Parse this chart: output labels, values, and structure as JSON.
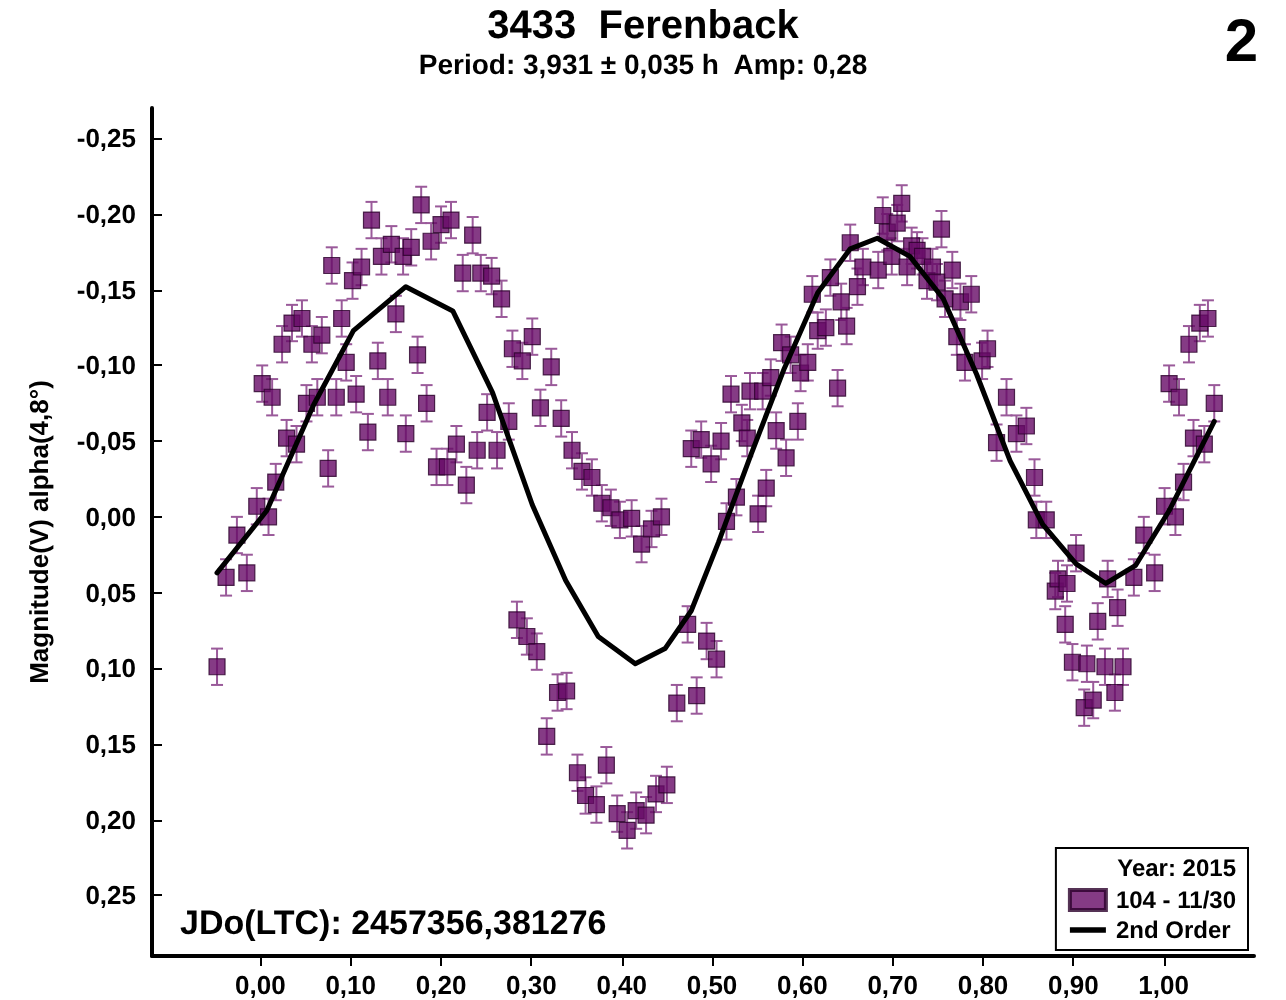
{
  "chart_data": {
    "type": "scatter",
    "title": "3433  Ferenback",
    "subtitle": "Period: 3,931 ± 0,035 h  Amp: 0,28",
    "ylabel": "Magnitude(V) alpha(4,8°)",
    "legend_title": "Year: 2015",
    "legend": "bottom right",
    "marker": "square",
    "grid": false,
    "annotations": [
      "2",
      "JDo(LTC): 2457356,381276"
    ],
    "xlim": [
      -0.12,
      1.1
    ],
    "ylim": [
      0.29,
      -0.27
    ],
    "xticks": [
      {
        "value": 0,
        "label": "0,00"
      },
      {
        "value": 0.1,
        "label": "0,10"
      },
      {
        "value": 0.2,
        "label": "0,20"
      },
      {
        "value": 0.3,
        "label": "0,30"
      },
      {
        "value": 0.4,
        "label": "0,40"
      },
      {
        "value": 0.5,
        "label": "0,50"
      },
      {
        "value": 0.6,
        "label": "0,60"
      },
      {
        "value": 0.7,
        "label": "0,70"
      },
      {
        "value": 0.8,
        "label": "0,80"
      },
      {
        "value": 0.9,
        "label": "0,90"
      },
      {
        "value": 1,
        "label": "1,00"
      }
    ],
    "yticks": [
      {
        "value": -0.25,
        "label": "-0,25"
      },
      {
        "value": -0.2,
        "label": "-0,20"
      },
      {
        "value": -0.15,
        "label": "-0,15"
      },
      {
        "value": -0.1,
        "label": "-0,10"
      },
      {
        "value": -0.05,
        "label": "-0,05"
      },
      {
        "value": 0,
        "label": "0,00"
      },
      {
        "value": 0.05,
        "label": "0,05"
      },
      {
        "value": 0.1,
        "label": "0,10"
      },
      {
        "value": 0.15,
        "label": "0,15"
      },
      {
        "value": 0.2,
        "label": "0,20"
      },
      {
        "value": 0.25,
        "label": "0,25"
      }
    ],
    "series": [
      {
        "name": "104 - 11/30",
        "color": "#660a66",
        "errors": [
          0.012,
          0.012,
          0.012,
          0.012,
          0.012,
          0.012,
          0.012,
          0.012,
          0.012,
          0.012,
          0.012,
          0.012,
          0.012,
          0.012,
          0.012,
          0.012,
          0.012,
          0.012,
          0.012,
          0.012,
          0.012,
          0.012,
          0.012,
          0.012,
          0.012,
          0.012,
          0.012,
          0.012,
          0.012,
          0.012,
          0.012,
          0.012,
          0.012,
          0.012,
          0.012,
          0.012,
          0.012,
          0.012,
          0.012,
          0.012,
          0.012,
          0.012,
          0.012,
          0.012,
          0.012,
          0.012,
          0.012,
          0.012,
          0.012,
          0.012,
          0.012,
          0.012,
          0.012,
          0.012,
          0.012,
          0.012,
          0.012,
          0.012,
          0.012,
          0.012,
          0.012,
          0.012,
          0.012,
          0.012,
          0.012,
          0.012,
          0.012,
          0.012,
          0.012,
          0.012,
          0.012,
          0.012,
          0.012,
          0.012,
          0.012,
          0.012,
          0.012,
          0.012,
          0.012,
          0.012,
          0.012,
          0.012,
          0.012,
          0.012,
          0.012,
          0.012,
          0.012,
          0.012,
          0.012,
          0.012,
          0.012,
          0.012,
          0.012,
          0.012,
          0.012,
          0.012,
          0.012,
          0.012,
          0.012,
          0.012,
          0.012,
          0.012,
          0.012,
          0.012,
          0.012,
          0.012,
          0.012,
          0.012,
          0.012,
          0.012,
          0.012,
          0.012,
          0.012,
          0.012,
          0.012,
          0.012,
          0.012,
          0.012,
          0.012,
          0.012,
          0.012,
          0.012,
          0.012,
          0.012,
          0.012,
          0.012,
          0.012,
          0.012,
          0.012,
          0.012,
          0.012,
          0.012,
          0.012,
          0.012,
          0.012,
          0.012,
          0.012,
          0.012,
          0.012,
          0.012,
          0.012,
          0.012,
          0.012,
          0.012,
          0.012,
          0.012,
          0.012,
          0.012,
          0.012,
          0.012,
          0.012,
          0.012,
          0.012,
          0.012,
          0.012,
          0.012,
          0.012,
          0.012,
          0.012,
          0.012,
          0.012,
          0.012,
          0.012,
          0.012,
          0.012,
          0.012,
          0.012,
          0.012,
          0.012,
          0.012,
          0.012,
          0.012,
          0.012,
          0.012,
          0.012,
          0.012,
          0.012,
          0.012,
          0.012,
          0.012,
          0.012
        ],
        "x": [
          -0.048,
          -0.038,
          -0.026,
          -0.015,
          -0.004,
          0.002,
          0.009,
          0.013,
          0.017,
          0.024,
          0.029,
          0.035,
          0.04,
          0.046,
          0.051,
          0.057,
          0.063,
          0.068,
          0.075,
          0.079,
          0.084,
          0.09,
          0.095,
          0.102,
          0.106,
          0.112,
          0.119,
          0.123,
          0.13,
          0.134,
          0.141,
          0.145,
          0.15,
          0.158,
          0.161,
          0.167,
          0.174,
          0.178,
          0.184,
          0.189,
          0.195,
          0.2,
          0.207,
          0.211,
          0.217,
          0.224,
          0.228,
          0.235,
          0.24,
          0.244,
          0.251,
          0.256,
          0.262,
          0.267,
          0.275,
          0.279,
          0.284,
          0.29,
          0.301,
          0.31,
          0.322,
          0.333,
          0.345,
          0.356,
          0.367,
          0.378,
          0.388,
          0.398,
          0.411,
          0.422,
          0.433,
          0.444,
          0.295,
          0.306,
          0.329,
          0.339,
          0.317,
          0.351,
          0.36,
          0.372,
          0.383,
          0.395,
          0.406,
          0.416,
          0.427,
          0.438,
          0.45,
          0.461,
          0.473,
          0.483,
          0.494,
          0.505,
          0.477,
          0.488,
          0.499,
          0.51,
          0.516,
          0.521,
          0.527,
          0.533,
          0.539,
          0.542,
          0.551,
          0.556,
          0.56,
          0.565,
          0.571,
          0.577,
          0.582,
          0.587,
          0.595,
          0.598,
          0.606,
          0.611,
          0.617,
          0.626,
          0.631,
          0.639,
          0.643,
          0.649,
          0.653,
          0.661,
          0.667,
          0.684,
          0.689,
          0.694,
          0.699,
          0.705,
          0.71,
          0.716,
          0.721,
          0.727,
          0.733,
          0.738,
          0.744,
          0.749,
          0.754,
          0.758,
          0.766,
          0.775,
          0.787,
          0.771,
          0.78,
          0.799,
          0.805,
          0.815,
          0.826,
          0.837,
          0.848,
          0.857,
          0.859,
          0.87,
          0.88,
          0.883,
          0.891,
          0.893,
          0.899,
          0.903,
          0.912,
          0.915,
          0.922,
          0.927,
          0.935,
          0.938,
          0.946,
          0.949,
          0.955,
          0.967,
          0.978,
          0.99,
          1.001,
          1.006,
          1.013,
          1.017,
          1.022,
          1.028,
          1.033,
          1.04,
          1.045,
          1.049,
          1.056
        ],
        "values": [
          0.099,
          0.04,
          0.012,
          0.037,
          -0.007,
          -0.088,
          0,
          -0.079,
          -0.023,
          -0.114,
          -0.052,
          -0.128,
          -0.048,
          -0.131,
          -0.075,
          -0.114,
          -0.079,
          -0.12,
          -0.032,
          -0.166,
          -0.079,
          -0.131,
          -0.102,
          -0.156,
          -0.081,
          -0.165,
          -0.056,
          -0.196,
          -0.103,
          -0.172,
          -0.079,
          -0.18,
          -0.134,
          -0.172,
          -0.055,
          -0.178,
          -0.107,
          -0.206,
          -0.075,
          -0.182,
          -0.033,
          -0.193,
          -0.033,
          -0.196,
          -0.048,
          -0.161,
          -0.021,
          -0.186,
          -0.044,
          -0.161,
          -0.069,
          -0.159,
          -0.044,
          -0.144,
          -0.063,
          -0.111,
          0.068,
          -0.103,
          -0.119,
          -0.072,
          -0.099,
          -0.065,
          -0.044,
          -0.03,
          -0.026,
          -0.009,
          -0.006,
          0.002,
          0.001,
          0.018,
          0.008,
          0,
          0.079,
          0.089,
          0.116,
          0.115,
          0.145,
          0.169,
          0.184,
          0.19,
          0.164,
          0.196,
          0.207,
          0.194,
          0.197,
          0.183,
          0.177,
          0.123,
          0.071,
          0.118,
          0.082,
          0.094,
          -0.045,
          -0.051,
          -0.035,
          -0.05,
          0.003,
          -0.081,
          -0.013,
          -0.062,
          -0.052,
          -0.083,
          -0.002,
          -0.083,
          -0.019,
          -0.092,
          -0.057,
          -0.115,
          -0.039,
          -0.107,
          -0.063,
          -0.095,
          -0.102,
          -0.147,
          -0.123,
          -0.125,
          -0.158,
          -0.085,
          -0.142,
          -0.126,
          -0.181,
          -0.152,
          -0.165,
          -0.163,
          -0.199,
          -0.188,
          -0.172,
          -0.194,
          -0.207,
          -0.165,
          -0.179,
          -0.176,
          -0.172,
          -0.156,
          -0.165,
          -0.155,
          -0.19,
          -0.144,
          -0.163,
          -0.142,
          -0.147,
          -0.119,
          -0.102,
          -0.103,
          -0.111,
          -0.049,
          -0.079,
          -0.055,
          -0.06,
          -0.026,
          0.002,
          0.002,
          0.049,
          0.041,
          0.071,
          0.044,
          0.096,
          0.024,
          0.126,
          0.097,
          0.121,
          0.069,
          0.099,
          0.041,
          0.116,
          0.06,
          0.099,
          0.04,
          0.012,
          0.037,
          -0.007,
          -0.088,
          0,
          -0.079,
          -0.023,
          -0.114,
          -0.052,
          -0.128,
          -0.048,
          -0.131,
          -0.075
        ]
      },
      {
        "name": "2nd Order",
        "type": "line",
        "color": "#000000",
        "marker": "none",
        "line_style": "solid",
        "x": [
          -0.048,
          0.007,
          0.059,
          0.103,
          0.161,
          0.213,
          0.257,
          0.301,
          0.338,
          0.374,
          0.415,
          0.448,
          0.477,
          0.507,
          0.543,
          0.58,
          0.617,
          0.653,
          0.683,
          0.719,
          0.756,
          0.793,
          0.83,
          0.866,
          0.903,
          0.936,
          0.969,
          1.006,
          1.056
        ],
        "values": [
          0.037,
          -0.004,
          -0.074,
          -0.123,
          -0.152,
          -0.136,
          -0.082,
          -0.008,
          0.042,
          0.079,
          0.097,
          0.087,
          0.062,
          0.017,
          -0.041,
          -0.098,
          -0.148,
          -0.177,
          -0.184,
          -0.172,
          -0.144,
          -0.094,
          -0.037,
          0.005,
          0.031,
          0.044,
          0.032,
          -0.004,
          -0.063
        ]
      }
    ]
  }
}
